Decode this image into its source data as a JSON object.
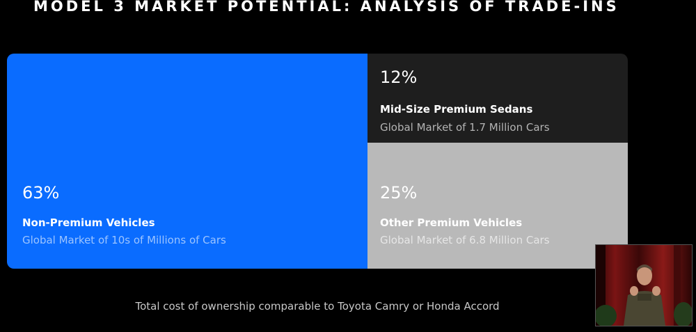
{
  "title": "MODEL 3 MARKET POTENTIAL: ANALYSIS OF TRADE-INS",
  "chart_data": {
    "type": "treemap",
    "title": "MODEL 3 MARKET POTENTIAL: ANALYSIS OF TRADE-INS",
    "items": [
      {
        "percent_label": "63%",
        "value": 63,
        "name": "Non-Premium Vehicles",
        "detail": "Global Market of 10s of Millions of Cars",
        "color": "#0a6cff",
        "text_color": "#ffffff",
        "detail_color": "#9cc4ff"
      },
      {
        "percent_label": "12%",
        "value": 12,
        "name": "Mid-Size Premium Sedans",
        "detail": "Global Market of 1.7 Million Cars",
        "color": "#1e1e1e",
        "text_color": "#ffffff",
        "detail_color": "#b4b4b4"
      },
      {
        "percent_label": "25%",
        "value": 25,
        "name": "Other Premium Vehicles",
        "detail": "Global Market of 6.8 Million Cars",
        "color": "#b9b9b9",
        "text_color": "#ffffff",
        "detail_color": "#e6e6e6"
      }
    ]
  },
  "footnote": "Total cost of ownership comparable to Toyota Camry or Honda Accord",
  "presenter_video": {
    "colors": {
      "curtain": "#7a1414",
      "curtain_dark": "#3a0808",
      "shirt": "#4a4632",
      "skin": "#c8967a"
    }
  }
}
